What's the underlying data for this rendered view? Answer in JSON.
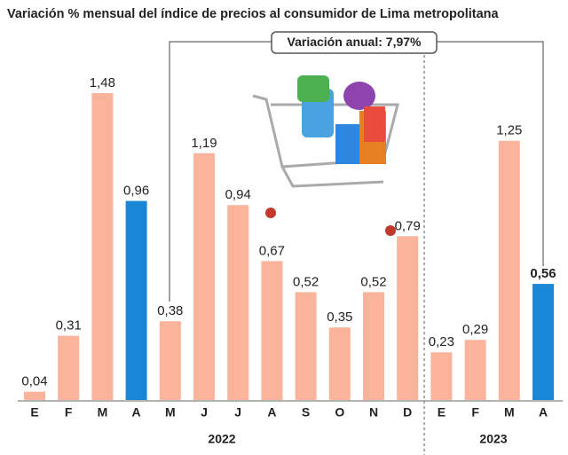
{
  "chart_data": {
    "type": "bar",
    "title": "Variación % mensual del índice de precios al consumidor de Lima metropolitana",
    "annotation": "Variación anual: 7,97%",
    "categories": [
      "E",
      "F",
      "M",
      "A",
      "M",
      "J",
      "J",
      "A",
      "S",
      "O",
      "N",
      "D",
      "E",
      "F",
      "M",
      "A"
    ],
    "values": [
      0.04,
      0.31,
      1.48,
      0.96,
      0.38,
      1.19,
      0.94,
      0.67,
      0.52,
      0.35,
      0.52,
      0.79,
      0.23,
      0.29,
      1.25,
      0.56
    ],
    "value_labels": [
      "0,04",
      "0,31",
      "1,48",
      "0,96",
      "0,38",
      "1,19",
      "0,94",
      "0,67",
      "0,52",
      "0,35",
      "0,52",
      "0,79",
      "0,23",
      "0,29",
      "1,25",
      "0,56"
    ],
    "colors": [
      "#f9b49b",
      "#f9b49b",
      "#f9b49b",
      "#1a86d6",
      "#f9b49b",
      "#f9b49b",
      "#f9b49b",
      "#f9b49b",
      "#f9b49b",
      "#f9b49b",
      "#f9b49b",
      "#f9b49b",
      "#f9b49b",
      "#f9b49b",
      "#f9b49b",
      "#1a86d6"
    ],
    "years": [
      "2022",
      "2023"
    ]
  }
}
